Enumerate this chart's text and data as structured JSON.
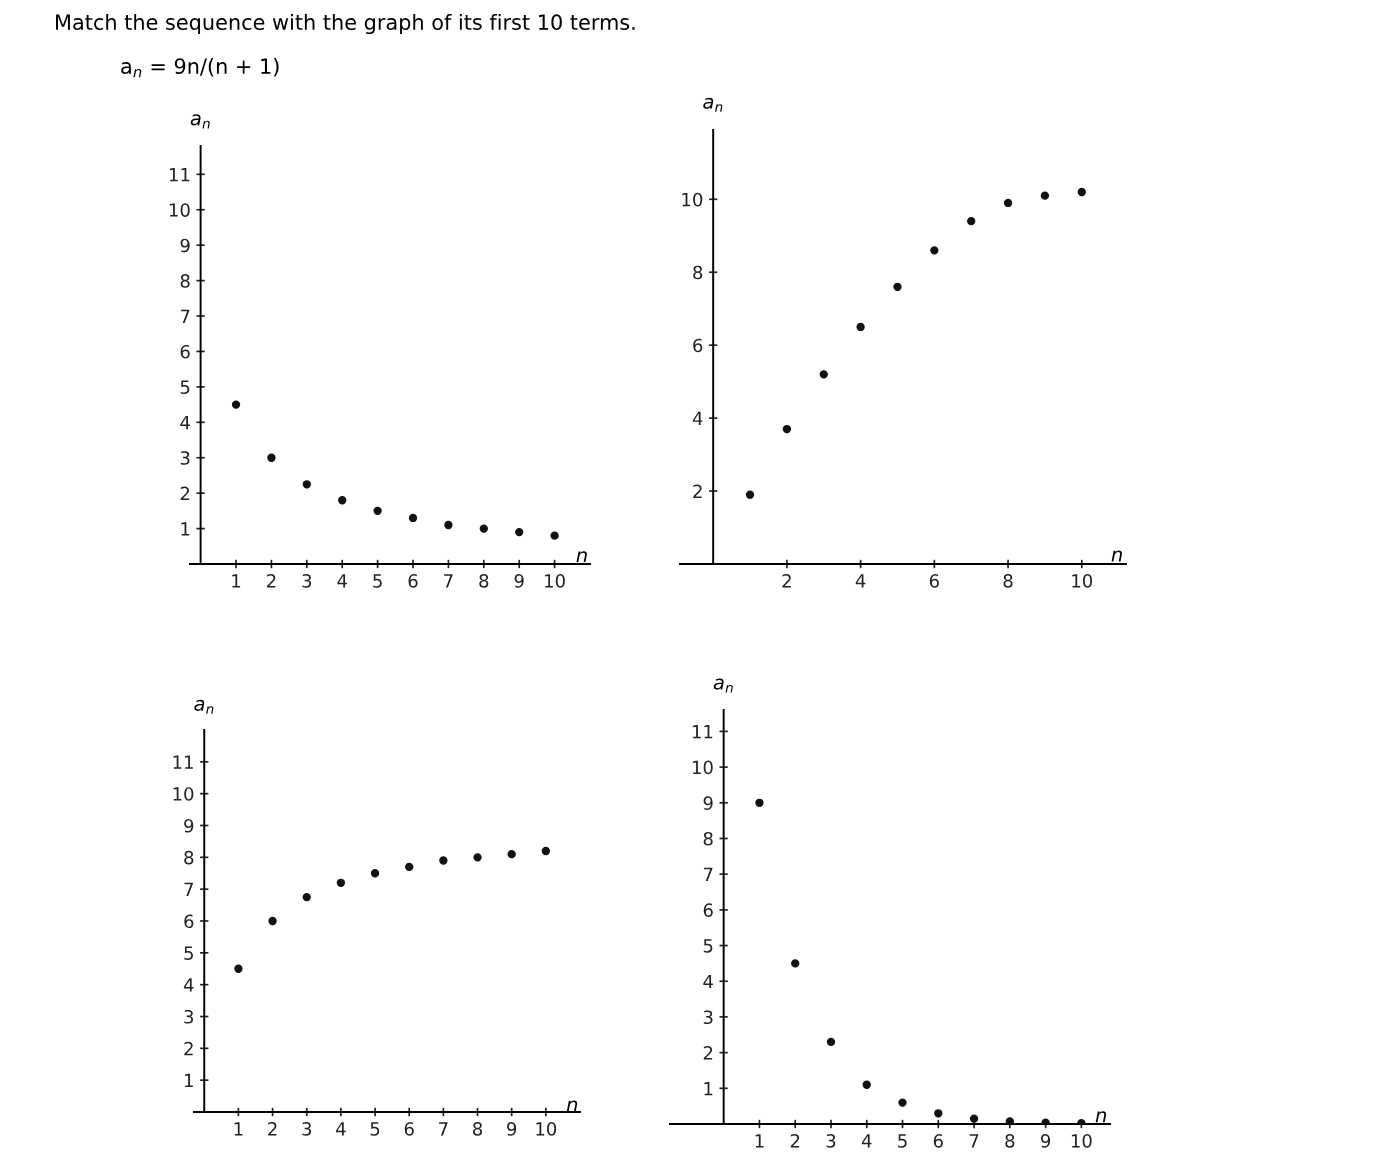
{
  "chart_data": [
    {
      "type": "scatter",
      "title": "Match the sequence with the graph of its first 10 terms.",
      "annotations": [
        "a$_{n}$ = 9n/(n + 1)"
      ],
      "xlabel": "n",
      "ylabel": "a$_{n}$",
      "color": "#111111",
      "marker": "circle",
      "grid": false,
      "legend": false,
      "x": [
        1,
        2,
        3,
        4,
        5,
        6,
        7,
        8,
        9,
        10
      ],
      "values": [
        4.5,
        3.0,
        2.25,
        1.8,
        1.5,
        1.3,
        1.1,
        1.0,
        0.9,
        0.8
      ],
      "xlim": [
        -0.3,
        11
      ],
      "ylim": [
        0,
        11.8
      ],
      "xticks": [
        1,
        2,
        3,
        4,
        5,
        6,
        7,
        8,
        9,
        10
      ],
      "yticks": [
        1,
        2,
        3,
        4,
        5,
        6,
        7,
        8,
        9,
        10,
        11
      ]
    },
    {
      "type": "scatter",
      "xlabel": "n",
      "ylabel": "a$_{n}$",
      "color": "#111111",
      "marker": "circle",
      "grid": false,
      "legend": false,
      "x": [
        1,
        2,
        3,
        4,
        5,
        6,
        7,
        8,
        9,
        10
      ],
      "values": [
        1.9,
        3.7,
        5.2,
        6.5,
        7.6,
        8.6,
        9.4,
        9.9,
        10.1,
        10.2
      ],
      "xlim": [
        -0.9,
        11.2
      ],
      "ylim": [
        0,
        11.9
      ],
      "xticks": [
        2,
        4,
        6,
        8,
        10
      ],
      "yticks": [
        2,
        4,
        6,
        8,
        10
      ]
    },
    {
      "type": "scatter",
      "xlabel": "n",
      "ylabel": "a$_{n}$",
      "color": "#111111",
      "marker": "circle",
      "grid": false,
      "legend": false,
      "x": [
        1,
        2,
        3,
        4,
        5,
        6,
        7,
        8,
        9,
        10
      ],
      "values": [
        4.5,
        6.0,
        6.75,
        7.2,
        7.5,
        7.7,
        7.9,
        8.0,
        8.1,
        8.2
      ],
      "xlim": [
        -0.3,
        11
      ],
      "ylim": [
        0,
        12
      ],
      "xticks": [
        1,
        2,
        3,
        4,
        5,
        6,
        7,
        8,
        9,
        10
      ],
      "yticks": [
        1,
        2,
        3,
        4,
        5,
        6,
        7,
        8,
        9,
        10,
        11
      ]
    },
    {
      "type": "scatter",
      "xlabel": "n",
      "ylabel": "a$_{n}$",
      "color": "#111111",
      "marker": "circle",
      "grid": false,
      "legend": false,
      "x": [
        1,
        2,
        3,
        4,
        5,
        6,
        7,
        8,
        9,
        10
      ],
      "values": [
        9.0,
        4.5,
        2.3,
        1.1,
        0.6,
        0.3,
        0.15,
        0.07,
        0.04,
        0.02
      ],
      "xlim": [
        -1.5,
        10.8
      ],
      "ylim": [
        0,
        11.6
      ],
      "xticks": [
        1,
        2,
        3,
        4,
        5,
        6,
        7,
        8,
        9,
        10
      ],
      "yticks": [
        1,
        2,
        3,
        4,
        5,
        6,
        7,
        8,
        9,
        10,
        11
      ]
    }
  ]
}
